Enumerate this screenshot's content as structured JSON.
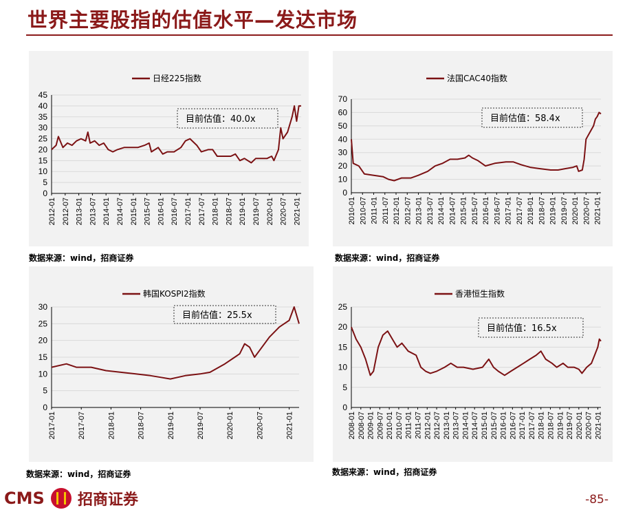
{
  "page": {
    "title": "世界主要股指的估值水平—发达市场",
    "page_number": "-85-",
    "logo_text": "CMS",
    "logo_cn": "招商证券",
    "line_color": "#7b1113",
    "accent_color": "#8b1a1a"
  },
  "chart_data": [
    {
      "type": "line",
      "legend": "日经225指数",
      "annotation": "目前估值：40.0x",
      "ylim": [
        0,
        45
      ],
      "yticks": [
        0,
        5,
        10,
        15,
        20,
        25,
        30,
        35,
        40,
        45
      ],
      "xlim": [
        "2012-01",
        "2021-03"
      ],
      "xticks": [
        "2012-01",
        "2012-07",
        "2013-01",
        "2013-07",
        "2014-01",
        "2014-07",
        "2015-01",
        "2015-07",
        "2016-01",
        "2016-07",
        "2017-01",
        "2017-07",
        "2018-01",
        "2018-07",
        "2019-01",
        "2019-07",
        "2020-01",
        "2020-07",
        "2021-01"
      ],
      "source": "数据来源：wind，招商证券",
      "series": [
        {
          "values": [
            [
              "2012-01",
              20
            ],
            [
              "2012-03",
              22
            ],
            [
              "2012-04",
              26
            ],
            [
              "2012-06",
              21
            ],
            [
              "2012-08",
              23
            ],
            [
              "2012-10",
              22
            ],
            [
              "2012-12",
              24
            ],
            [
              "2013-02",
              25
            ],
            [
              "2013-04",
              24
            ],
            [
              "2013-05",
              28
            ],
            [
              "2013-06",
              23
            ],
            [
              "2013-08",
              24
            ],
            [
              "2013-10",
              22
            ],
            [
              "2013-12",
              23
            ],
            [
              "2014-02",
              20
            ],
            [
              "2014-04",
              19
            ],
            [
              "2014-06",
              20
            ],
            [
              "2014-09",
              21
            ],
            [
              "2014-12",
              21
            ],
            [
              "2015-03",
              21
            ],
            [
              "2015-06",
              22
            ],
            [
              "2015-08",
              23
            ],
            [
              "2015-09",
              19
            ],
            [
              "2015-12",
              21
            ],
            [
              "2016-02",
              18
            ],
            [
              "2016-04",
              19
            ],
            [
              "2016-07",
              19
            ],
            [
              "2016-10",
              21
            ],
            [
              "2016-12",
              24
            ],
            [
              "2017-02",
              25
            ],
            [
              "2017-05",
              22
            ],
            [
              "2017-07",
              19
            ],
            [
              "2017-10",
              20
            ],
            [
              "2017-12",
              20
            ],
            [
              "2018-02",
              17
            ],
            [
              "2018-05",
              17
            ],
            [
              "2018-08",
              17
            ],
            [
              "2018-10",
              18
            ],
            [
              "2018-12",
              15
            ],
            [
              "2019-02",
              16
            ],
            [
              "2019-05",
              14
            ],
            [
              "2019-07",
              16
            ],
            [
              "2019-10",
              16
            ],
            [
              "2019-12",
              16
            ],
            [
              "2020-02",
              17
            ],
            [
              "2020-03",
              15
            ],
            [
              "2020-05",
              20
            ],
            [
              "2020-06",
              30
            ],
            [
              "2020-07",
              25
            ],
            [
              "2020-09",
              28
            ],
            [
              "2020-11",
              35
            ],
            [
              "2020-12",
              40
            ],
            [
              "2021-01",
              33
            ],
            [
              "2021-02",
              40
            ],
            [
              "2021-03",
              40
            ]
          ]
        }
      ]
    },
    {
      "type": "line",
      "legend": "法国CAC40指数",
      "annotation": "目前估值：58.4x",
      "ylim": [
        0,
        70
      ],
      "yticks": [
        0,
        10,
        20,
        30,
        40,
        50,
        60,
        70
      ],
      "xlim": [
        "2010-01",
        "2021-03"
      ],
      "xticks": [
        "2010-01",
        "2010-07",
        "2011-01",
        "2011-07",
        "2012-01",
        "2012-07",
        "2013-01",
        "2013-07",
        "2014-01",
        "2014-07",
        "2015-01",
        "2015-07",
        "2016-01",
        "2016-07",
        "2017-01",
        "2017-07",
        "2018-01",
        "2018-07",
        "2019-01",
        "2019-07",
        "2020-01",
        "2020-07",
        "2021-01"
      ],
      "source": "数据来源：wind，招商证券",
      "series": [
        {
          "values": [
            [
              "2010-01",
              40
            ],
            [
              "2010-02",
              22
            ],
            [
              "2010-05",
              20
            ],
            [
              "2010-08",
              14
            ],
            [
              "2011-01",
              13
            ],
            [
              "2011-06",
              12
            ],
            [
              "2011-09",
              10
            ],
            [
              "2011-12",
              9
            ],
            [
              "2012-04",
              11
            ],
            [
              "2012-09",
              11
            ],
            [
              "2013-01",
              13
            ],
            [
              "2013-06",
              16
            ],
            [
              "2013-10",
              20
            ],
            [
              "2014-02",
              22
            ],
            [
              "2014-06",
              25
            ],
            [
              "2014-10",
              25
            ],
            [
              "2015-02",
              26
            ],
            [
              "2015-04",
              28
            ],
            [
              "2015-06",
              26
            ],
            [
              "2015-09",
              24
            ],
            [
              "2016-01",
              20
            ],
            [
              "2016-06",
              22
            ],
            [
              "2016-12",
              23
            ],
            [
              "2017-04",
              23
            ],
            [
              "2017-08",
              21
            ],
            [
              "2018-01",
              19
            ],
            [
              "2018-06",
              18
            ],
            [
              "2018-12",
              17
            ],
            [
              "2019-04",
              17
            ],
            [
              "2019-08",
              18
            ],
            [
              "2019-12",
              19
            ],
            [
              "2020-02",
              20
            ],
            [
              "2020-03",
              16
            ],
            [
              "2020-05",
              17
            ],
            [
              "2020-06",
              25
            ],
            [
              "2020-07",
              40
            ],
            [
              "2020-09",
              45
            ],
            [
              "2020-11",
              50
            ],
            [
              "2020-12",
              55
            ],
            [
              "2021-01",
              57
            ],
            [
              "2021-02",
              60
            ],
            [
              "2021-03",
              59
            ]
          ]
        }
      ]
    },
    {
      "type": "line",
      "legend": "韩国KOSPI2指数",
      "annotation": "目前估值：25.5x",
      "ylim": [
        0,
        30
      ],
      "yticks": [
        0,
        5,
        10,
        15,
        20,
        25,
        30
      ],
      "xlim": [
        "2017-01",
        "2021-03"
      ],
      "xticks": [
        "2017-01",
        "2017-07",
        "2018-01",
        "2018-07",
        "2019-01",
        "2019-07",
        "2020-01",
        "2020-07",
        "2021-01"
      ],
      "source": "数据来源：wind，招商证券",
      "series": [
        {
          "values": [
            [
              "2017-01",
              12
            ],
            [
              "2017-04",
              13
            ],
            [
              "2017-06",
              12
            ],
            [
              "2017-09",
              12
            ],
            [
              "2017-12",
              11
            ],
            [
              "2018-03",
              10.5
            ],
            [
              "2018-06",
              10
            ],
            [
              "2018-09",
              9.5
            ],
            [
              "2018-11",
              9
            ],
            [
              "2019-01",
              8.5
            ],
            [
              "2019-04",
              9.5
            ],
            [
              "2019-07",
              10
            ],
            [
              "2019-09",
              10.5
            ],
            [
              "2019-12",
              13
            ],
            [
              "2020-02",
              15
            ],
            [
              "2020-03",
              16
            ],
            [
              "2020-04",
              19
            ],
            [
              "2020-05",
              18
            ],
            [
              "2020-06",
              15
            ],
            [
              "2020-07",
              17
            ],
            [
              "2020-09",
              21
            ],
            [
              "2020-11",
              24
            ],
            [
              "2020-12",
              25
            ],
            [
              "2021-01",
              26
            ],
            [
              "2021-02",
              30
            ],
            [
              "2021-03",
              25
            ]
          ]
        }
      ]
    },
    {
      "type": "line",
      "legend": "香港恒生指数",
      "annotation": "目前估值：16.5x",
      "ylim": [
        0,
        25
      ],
      "yticks": [
        0,
        5,
        10,
        15,
        20,
        25
      ],
      "xlim": [
        "2008-01",
        "2021-03"
      ],
      "xticks": [
        "2008-01",
        "2008-07",
        "2009-01",
        "2009-07",
        "2010-01",
        "2010-07",
        "2011-01",
        "2011-07",
        "2012-01",
        "2012-07",
        "2013-01",
        "2013-07",
        "2014-01",
        "2014-07",
        "2015-01",
        "2015-07",
        "2016-01",
        "2016-07",
        "2017-01",
        "2017-07",
        "2018-01",
        "2018-07",
        "2019-01",
        "2019-07",
        "2020-01",
        "2020-07",
        "2021-01"
      ],
      "source": "数据来源：wind，招商证券",
      "series": [
        {
          "values": [
            [
              "2008-01",
              20
            ],
            [
              "2008-04",
              17
            ],
            [
              "2008-07",
              15
            ],
            [
              "2008-10",
              12
            ],
            [
              "2009-01",
              8
            ],
            [
              "2009-03",
              9
            ],
            [
              "2009-06",
              15
            ],
            [
              "2009-09",
              18
            ],
            [
              "2009-12",
              19
            ],
            [
              "2010-03",
              17
            ],
            [
              "2010-06",
              15
            ],
            [
              "2010-09",
              16
            ],
            [
              "2011-01",
              14
            ],
            [
              "2011-06",
              13
            ],
            [
              "2011-09",
              10
            ],
            [
              "2011-12",
              9
            ],
            [
              "2012-03",
              8.5
            ],
            [
              "2012-07",
              9
            ],
            [
              "2012-12",
              10
            ],
            [
              "2013-04",
              11
            ],
            [
              "2013-08",
              10
            ],
            [
              "2013-12",
              10
            ],
            [
              "2014-06",
              9.5
            ],
            [
              "2014-12",
              10
            ],
            [
              "2015-04",
              12
            ],
            [
              "2015-07",
              10
            ],
            [
              "2015-10",
              9
            ],
            [
              "2016-02",
              8
            ],
            [
              "2016-06",
              9
            ],
            [
              "2016-10",
              10
            ],
            [
              "2017-02",
              11
            ],
            [
              "2017-06",
              12
            ],
            [
              "2017-10",
              13
            ],
            [
              "2018-01",
              14
            ],
            [
              "2018-04",
              12
            ],
            [
              "2018-08",
              11
            ],
            [
              "2018-11",
              10
            ],
            [
              "2019-03",
              11
            ],
            [
              "2019-06",
              10
            ],
            [
              "2019-10",
              10
            ],
            [
              "2020-01",
              9.5
            ],
            [
              "2020-03",
              8.5
            ],
            [
              "2020-06",
              10
            ],
            [
              "2020-09",
              11
            ],
            [
              "2020-11",
              13
            ],
            [
              "2021-01",
              15
            ],
            [
              "2021-02",
              17
            ],
            [
              "2021-03",
              16.5
            ]
          ]
        }
      ]
    }
  ]
}
